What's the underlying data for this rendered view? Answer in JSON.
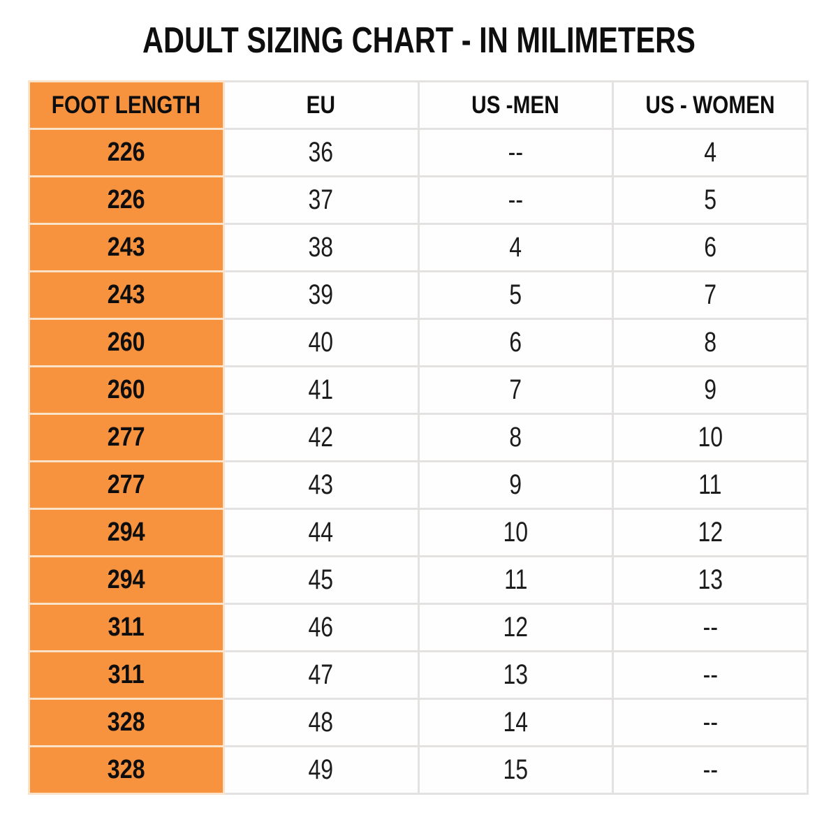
{
  "title": "ADULT SIZING CHART - IN MILIMETERS",
  "table": {
    "headers": [
      "FOOT LENGTH",
      "EU",
      "US -MEN",
      "US - WOMEN"
    ],
    "rows": [
      [
        "226",
        "36",
        "--",
        "4"
      ],
      [
        "226",
        "37",
        "--",
        "5"
      ],
      [
        "243",
        "38",
        "4",
        "6"
      ],
      [
        "243",
        "39",
        "5",
        "7"
      ],
      [
        "260",
        "40",
        "6",
        "8"
      ],
      [
        "260",
        "41",
        "7",
        "9"
      ],
      [
        "277",
        "42",
        "8",
        "10"
      ],
      [
        "277",
        "43",
        "9",
        "11"
      ],
      [
        "294",
        "44",
        "10",
        "12"
      ],
      [
        "294",
        "45",
        "11",
        "13"
      ],
      [
        "311",
        "46",
        "12",
        "--"
      ],
      [
        "311",
        "47",
        "13",
        "--"
      ],
      [
        "328",
        "48",
        "14",
        "--"
      ],
      [
        "328",
        "49",
        "15",
        "--"
      ]
    ],
    "empty_marker": "--",
    "colors": {
      "foot_length_bg": "#F7923E",
      "grid_line": "#E4E2E0",
      "foot_grid_line": "#FBE3C9",
      "text": "#0E0E0E"
    }
  }
}
